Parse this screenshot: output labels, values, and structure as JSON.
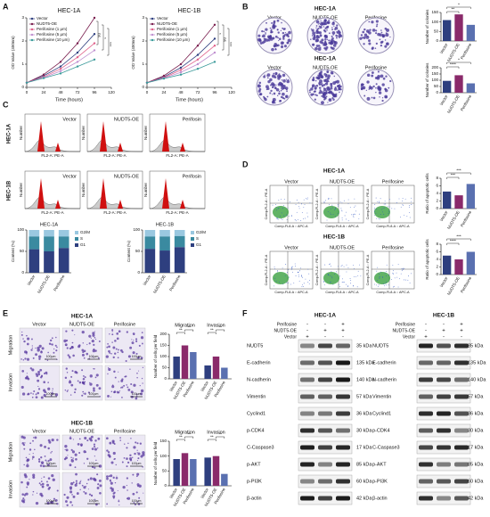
{
  "panels": [
    "A",
    "B",
    "C",
    "D",
    "E",
    "F"
  ],
  "flow": {
    "columns": [
      "Vector",
      "NUDT5-OE",
      "Perifosin"
    ],
    "rows": [
      "HEC-1A",
      "HEC-1B"
    ],
    "x_label": "FL2-A: PE-A",
    "y_label": "Number"
  },
  "scatter": {
    "columns": [
      "Vector",
      "NUDT5-OE",
      "Perifosine"
    ],
    "x_label": "Comp-FL8-A :: APC-A",
    "y_label": "Comp-FL2-A :: PE-A"
  },
  "microscopy": {
    "scale_bar": "100μm"
  },
  "chart_data": [
    {
      "type": "line",
      "title": "HEC-1A",
      "x_label": "Time (hours)",
      "y_label": "OD Value (450nm)",
      "x": [
        0,
        24,
        48,
        72,
        96
      ],
      "xlim": [
        0,
        120
      ],
      "xticks": [
        0,
        24,
        48,
        72,
        96,
        120
      ],
      "ylim": [
        0,
        3
      ],
      "yticks": [
        0,
        1,
        2,
        3
      ],
      "series": [
        {
          "name": "Vector",
          "color": "#2e3f7f",
          "values": [
            0.2,
            0.5,
            0.9,
            1.5,
            2.3
          ]
        },
        {
          "name": "NUDT5-OE",
          "color": "#7a1f4f",
          "values": [
            0.2,
            0.55,
            1.1,
            1.9,
            3.0
          ]
        },
        {
          "name": "Perifosine (1 μm)",
          "color": "#e0608a",
          "values": [
            0.2,
            0.45,
            0.8,
            1.3,
            1.9
          ]
        },
        {
          "name": "Perifosine (5 μm)",
          "color": "#c090d0",
          "values": [
            0.2,
            0.42,
            0.7,
            1.1,
            1.6
          ]
        },
        {
          "name": "Perifosine (10 μm)",
          "color": "#3a9a9a",
          "values": [
            0.2,
            0.4,
            0.6,
            0.9,
            1.2
          ]
        }
      ],
      "annotations": [
        "ns",
        "*",
        "***"
      ]
    },
    {
      "type": "line",
      "title": "HEC-1B",
      "x_label": "Time (hours)",
      "y_label": "OD Value (450nm)",
      "x": [
        0,
        24,
        48,
        72,
        96
      ],
      "xlim": [
        0,
        120
      ],
      "xticks": [
        0,
        24,
        48,
        72,
        96,
        120
      ],
      "ylim": [
        0,
        3
      ],
      "yticks": [
        0,
        1,
        2,
        3
      ],
      "series": [
        {
          "name": "Vector",
          "color": "#2e3f7f",
          "values": [
            0.2,
            0.45,
            0.85,
            1.4,
            2.1
          ]
        },
        {
          "name": "NUDT5-OE",
          "color": "#7a1f4f",
          "values": [
            0.2,
            0.5,
            1.0,
            1.8,
            2.7
          ]
        },
        {
          "name": "Perifosine (1 μm)",
          "color": "#e0608a",
          "values": [
            0.2,
            0.42,
            0.75,
            1.2,
            1.8
          ]
        },
        {
          "name": "Perifosine (5 μm)",
          "color": "#c090d0",
          "values": [
            0.2,
            0.4,
            0.65,
            1.0,
            1.5
          ]
        },
        {
          "name": "Perifosine (10 μm)",
          "color": "#3a9a9a",
          "values": [
            0.2,
            0.38,
            0.55,
            0.8,
            1.1
          ]
        }
      ],
      "annotations": [
        "*",
        "ns",
        "***"
      ]
    },
    {
      "type": "bar",
      "title": "HEC-1A",
      "y_label": "Number of colonies",
      "categories": [
        "Vector",
        "NUDT5-OE",
        "Perifosine"
      ],
      "values": [
        110,
        140,
        85
      ],
      "colors": [
        "#2e3f7f",
        "#8a2a6a",
        "#5a70b0"
      ],
      "ylim": [
        0,
        150
      ],
      "yticks": [
        0,
        50,
        100,
        150
      ],
      "annotations": [
        "**",
        "*"
      ]
    },
    {
      "type": "bar",
      "title": "HEC-1A",
      "y_label": "Number of colonies",
      "categories": [
        "Vector",
        "NUDT5-OE",
        "Perifosine"
      ],
      "values": [
        95,
        140,
        75
      ],
      "colors": [
        "#2e3f7f",
        "#8a2a6a",
        "#5a70b0"
      ],
      "ylim": [
        0,
        200
      ],
      "yticks": [
        0,
        50,
        100,
        150,
        200
      ],
      "annotations": [
        "****",
        "*"
      ]
    },
    {
      "type": "stacked",
      "title": "HEC-1A",
      "y_label": "Content (%)",
      "categories": [
        "Vector",
        "NUDT5-OE",
        "Perifosine"
      ],
      "ylim": [
        0,
        100
      ],
      "yticks": [
        0,
        50,
        100
      ],
      "series": [
        {
          "name": "G1",
          "color": "#2e3f7f",
          "values": [
            55,
            50,
            58
          ]
        },
        {
          "name": "S",
          "color": "#3a8aa0",
          "values": [
            30,
            35,
            27
          ]
        },
        {
          "name": "G2/M",
          "color": "#9ac8e0",
          "values": [
            15,
            15,
            15
          ]
        }
      ]
    },
    {
      "type": "stacked",
      "title": "HEC-1B",
      "y_label": "Content (%)",
      "categories": [
        "Vector",
        "NUDT5-OE",
        "Perifosine"
      ],
      "ylim": [
        0,
        100
      ],
      "yticks": [
        0,
        50,
        100
      ],
      "series": [
        {
          "name": "G1",
          "color": "#2e3f7f",
          "values": [
            56,
            52,
            60
          ]
        },
        {
          "name": "S",
          "color": "#3a8aa0",
          "values": [
            29,
            33,
            26
          ]
        },
        {
          "name": "G2/M",
          "color": "#9ac8e0",
          "values": [
            15,
            15,
            14
          ]
        }
      ]
    },
    {
      "type": "bar",
      "title": "HEC-1A",
      "y_label": "Ratio of apoptotic cells",
      "categories": [
        "Vector",
        "NUDT5-OE",
        "Perifosine"
      ],
      "values": [
        4.5,
        3.5,
        6.5
      ],
      "colors": [
        "#2e3f7f",
        "#8a2a6a",
        "#5a70b0"
      ],
      "ylim": [
        0,
        8
      ],
      "yticks": [
        0,
        2,
        4,
        6,
        8
      ],
      "annotations": [
        "***",
        "***"
      ]
    },
    {
      "type": "bar",
      "title": "HEC-1B",
      "y_label": "Ratio of apoptotic cells",
      "categories": [
        "Vector",
        "NUDT5-OE",
        "Perifosine"
      ],
      "values": [
        5,
        4,
        6
      ],
      "colors": [
        "#2e3f7f",
        "#8a2a6a",
        "#5a70b0"
      ],
      "ylim": [
        0,
        8
      ],
      "yticks": [
        0,
        2,
        4,
        6,
        8
      ],
      "annotations": [
        "****",
        "***"
      ]
    },
    {
      "type": "grouped",
      "title": "HEC-1A",
      "y_label": "Number of cells per field",
      "categories": [
        "Migration",
        "Invasion"
      ],
      "ylim": [
        0,
        200
      ],
      "yticks": [
        0,
        50,
        100,
        150,
        200
      ],
      "series": [
        {
          "name": "Vector",
          "color": "#2e3f7f",
          "values": [
            100,
            60
          ]
        },
        {
          "name": "NUDT5-OE",
          "color": "#8a2a6a",
          "values": [
            150,
            100
          ]
        },
        {
          "name": "Perifosine",
          "color": "#5a70b0",
          "values": [
            120,
            50
          ]
        }
      ],
      "annotations": [
        "**",
        "**",
        "**",
        "**"
      ]
    },
    {
      "type": "grouped",
      "title": "HEC-1B",
      "y_label": "Number of cells per field",
      "categories": [
        "Migration",
        "Invasion"
      ],
      "ylim": [
        0,
        150
      ],
      "yticks": [
        0,
        50,
        100,
        150
      ],
      "series": [
        {
          "name": "Vector",
          "color": "#2e3f7f",
          "values": [
            90,
            95
          ]
        },
        {
          "name": "NUDT5-OE",
          "color": "#8a2a6a",
          "values": [
            110,
            100
          ]
        },
        {
          "name": "Perifosine",
          "color": "#5a70b0",
          "values": [
            90,
            40
          ]
        }
      ],
      "annotations": [
        "**",
        "**",
        "**",
        "**"
      ]
    }
  ],
  "blots": [
    {
      "title": "HEC-1A",
      "treatments": [
        {
          "name": "Perifosine",
          "signs": [
            "-",
            "-",
            "+"
          ]
        },
        {
          "name": "NUDT5-OE",
          "signs": [
            "-",
            "+",
            "+"
          ]
        },
        {
          "name": "Vector",
          "signs": [
            "+",
            "-",
            "-"
          ]
        }
      ],
      "proteins": [
        {
          "name": "NUDT5",
          "kda": "35 kDa"
        },
        {
          "name": "E-cadherin",
          "kda": "135 kDa"
        },
        {
          "name": "N-cadherin",
          "kda": "140 kDa"
        },
        {
          "name": "Vimentin",
          "kda": "57 kDa"
        },
        {
          "name": "Cyclind1",
          "kda": "36 kDa"
        },
        {
          "name": "p-CDK4",
          "kda": "30 kDa"
        },
        {
          "name": "C-Caspase3",
          "kda": "17 kDa"
        },
        {
          "name": "p-AKT",
          "kda": "85 kDa"
        },
        {
          "name": "p-PI3K",
          "kda": "60 kDa"
        },
        {
          "name": "β-actin",
          "kda": "42 kDa"
        }
      ]
    },
    {
      "title": "HEC-1B",
      "treatments": [
        {
          "name": "Perifosine",
          "signs": [
            "-",
            "-",
            "+"
          ]
        },
        {
          "name": "NUDT5-OE",
          "signs": [
            "-",
            "+",
            "+"
          ]
        },
        {
          "name": "Vector",
          "signs": [
            "+",
            "-",
            "-"
          ]
        }
      ],
      "proteins": [
        {
          "name": "NUDT5",
          "kda": "35 kDa"
        },
        {
          "name": "E-cadherin",
          "kda": "135 kDa"
        },
        {
          "name": "N-cadherin",
          "kda": "140 kDa"
        },
        {
          "name": "Vimentin",
          "kda": "57 kDa"
        },
        {
          "name": "Cyclind1",
          "kda": "36 kDa"
        },
        {
          "name": "p-CDK4",
          "kda": "30 kDa"
        },
        {
          "name": "C-Caspase3",
          "kda": "17 kDa"
        },
        {
          "name": "p-AKT",
          "kda": "85 kDa"
        },
        {
          "name": "p-PI3K",
          "kda": "60 kDa"
        },
        {
          "name": "β-actin",
          "kda": "42 kDa"
        }
      ]
    }
  ]
}
